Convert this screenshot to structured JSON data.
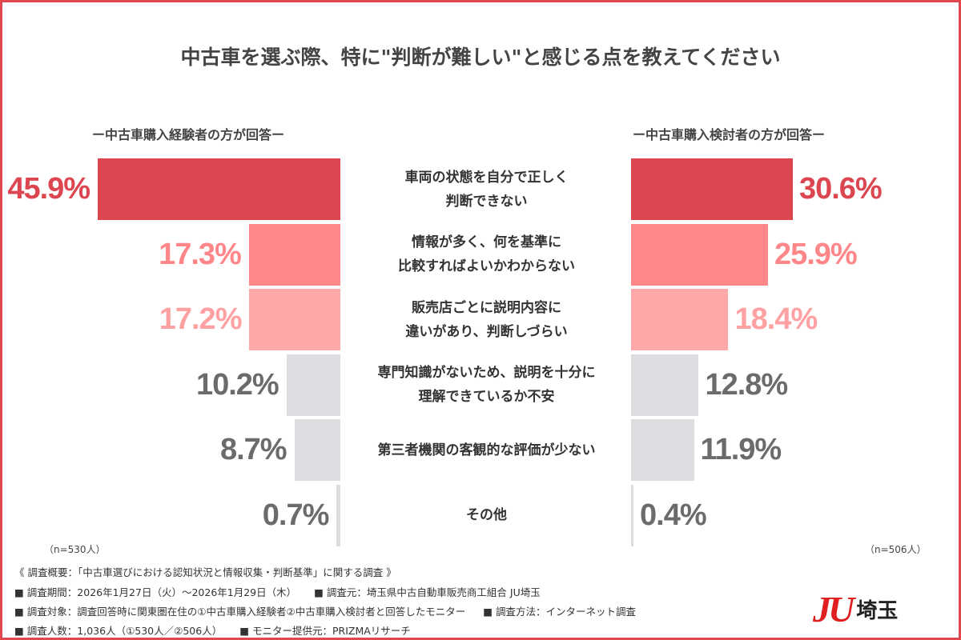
{
  "chart_data": {
    "type": "bar",
    "orientation": "horizontal-butterfly",
    "title": "中古車を選ぶ際、特に\"判断が難しい\"と感じる点を教えてください",
    "categories": [
      "車両の状態を自分で正しく\n判断できない",
      "情報が多く、何を基準に\n比較すればよいかわからない",
      "販売店ごとに説明内容に\n違いがあり、判断しづらい",
      "専門知識がないため、説明を十分に\n理解できているか不安",
      "第三者機関の客観的な評価が少ない",
      "その他"
    ],
    "series": [
      {
        "name": "ー中古車購入経験者の方が回答ー",
        "values": [
          45.9,
          17.3,
          17.2,
          10.2,
          8.7,
          0.7
        ],
        "labels": [
          "45.9%",
          "17.3%",
          "17.2%",
          "10.2%",
          "8.7%",
          "0.7%"
        ],
        "n": "（n=530人）"
      },
      {
        "name": "ー中古車購入検討者の方が回答ー",
        "values": [
          30.6,
          25.9,
          18.4,
          12.8,
          11.9,
          0.4
        ],
        "labels": [
          "30.6%",
          "25.9%",
          "18.4%",
          "12.8%",
          "11.9%",
          "0.4%"
        ],
        "n": "（n=506人）"
      }
    ],
    "unit": "%",
    "rank_colors": [
      "#dc4650",
      "#ff878a",
      "#ffa8aa",
      "#dddce0",
      "#dddce0",
      "#dddce0"
    ],
    "label_colors": [
      "#dc4650",
      "#ff878a",
      "#ffa0a2",
      "#6b6b6e",
      "#6b6b6e",
      "#6b6b6e"
    ],
    "grid": false
  },
  "footer": {
    "overview": "《 調査概要：「中古車選びにおける認知状況と情報収集・判断基準」に関する調査 》",
    "lines": [
      [
        "■ 調査期間：2026年1月27日（火）～2026年1月29日（木）",
        "■ 調査元：埼玉県中古自動車販売商工組合 JU埼玉"
      ],
      [
        "■ 調査対象：調査回答時に関東圏在住の①中古車購入経験者②中古車購入検討者と回答したモニター",
        "■ 調査方法：インターネット調査"
      ],
      [
        "■ 調査人数：1,036人（①530人／②506人）",
        "■ モニター提供元：PRIZMAリサーチ"
      ]
    ]
  },
  "logo": {
    "mark": "JU",
    "text": "埼玉"
  },
  "accent_color": "#e0474f"
}
